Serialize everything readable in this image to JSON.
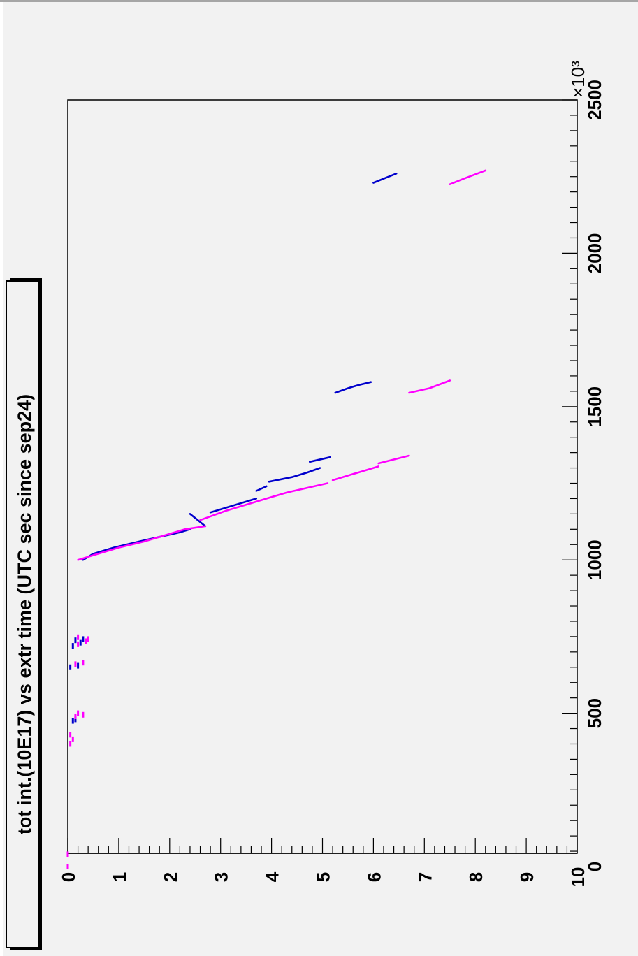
{
  "chart_data": {
    "type": "scatter",
    "title": "tot int.(10E17) vs extr time (UTC sec since sep24)",
    "xlabel": "",
    "ylabel": "",
    "x_multiplier": "×10³",
    "xlim": [
      0,
      2500
    ],
    "ylim": [
      0,
      10
    ],
    "x_ticks": [
      0,
      500,
      1000,
      1500,
      2000,
      2500
    ],
    "x_tick_labels": [
      "0",
      "500",
      "1000",
      "1500",
      "2000",
      "2500"
    ],
    "y_ticks": [
      0,
      1,
      2,
      3,
      4,
      5,
      6,
      7,
      8,
      9,
      10
    ],
    "y_tick_labels": [
      "0",
      "1",
      "2",
      "3",
      "4",
      "5",
      "6",
      "7",
      "8",
      "9",
      "10"
    ],
    "series": [
      {
        "color": "#0000cc",
        "segments": [
          [
            [
              1000,
              0.3
            ],
            [
              1020,
              0.5
            ],
            [
              1040,
              0.9
            ],
            [
              1060,
              1.4
            ],
            [
              1075,
              1.8
            ],
            [
              1090,
              2.2
            ],
            [
              1100,
              2.4
            ]
          ],
          [
            [
              1110,
              2.7
            ],
            [
              1150,
              2.4
            ]
          ],
          [
            [
              1155,
              2.8
            ],
            [
              1170,
              3.1
            ],
            [
              1185,
              3.4
            ],
            [
              1200,
              3.7
            ]
          ],
          [
            [
              1225,
              3.7
            ],
            [
              1240,
              3.9
            ]
          ],
          [
            [
              1255,
              3.95
            ],
            [
              1270,
              4.4
            ],
            [
              1285,
              4.7
            ],
            [
              1300,
              4.95
            ]
          ],
          [
            [
              1320,
              4.75
            ],
            [
              1335,
              5.15
            ]
          ],
          [
            [
              1545,
              5.25
            ],
            [
              1560,
              5.5
            ],
            [
              1570,
              5.7
            ],
            [
              1580,
              5.95
            ]
          ],
          [
            [
              2230,
              6.0
            ],
            [
              2260,
              6.45
            ]
          ]
        ],
        "points": [
          [
            475,
            0.1
          ],
          [
            480,
            0.15
          ],
          [
            650,
            0.05
          ],
          [
            655,
            0.2
          ],
          [
            720,
            0.1
          ],
          [
            730,
            0.25
          ],
          [
            738,
            0.15
          ],
          [
            742,
            0.3
          ]
        ]
      },
      {
        "color": "#ff00ff",
        "segments": [
          [
            [
              1000,
              0.2
            ],
            [
              1020,
              0.6
            ],
            [
              1040,
              1.0
            ],
            [
              1060,
              1.5
            ],
            [
              1080,
              1.9
            ],
            [
              1100,
              2.3
            ],
            [
              1110,
              2.7
            ]
          ],
          [
            [
              1130,
              2.6
            ],
            [
              1160,
              3.1
            ],
            [
              1180,
              3.5
            ],
            [
              1220,
              4.3
            ],
            [
              1250,
              5.1
            ]
          ],
          [
            [
              1260,
              5.2
            ],
            [
              1280,
              5.6
            ],
            [
              1305,
              6.1
            ]
          ],
          [
            [
              1315,
              6.1
            ],
            [
              1340,
              6.7
            ]
          ],
          [
            [
              1545,
              6.7
            ],
            [
              1560,
              7.1
            ],
            [
              1585,
              7.5
            ]
          ],
          [
            [
              2225,
              7.5
            ],
            [
              2245,
              7.8
            ],
            [
              2270,
              8.2
            ]
          ]
        ],
        "points": [
          [
            0,
            0.0
          ],
          [
            40,
            0.0
          ],
          [
            400,
            0.05
          ],
          [
            415,
            0.1
          ],
          [
            430,
            0.05
          ],
          [
            490,
            0.15
          ],
          [
            495,
            0.3
          ],
          [
            500,
            0.2
          ],
          [
            660,
            0.15
          ],
          [
            665,
            0.3
          ],
          [
            725,
            0.2
          ],
          [
            735,
            0.35
          ],
          [
            742,
            0.4
          ],
          [
            748,
            0.2
          ]
        ]
      }
    ],
    "grid": false
  }
}
